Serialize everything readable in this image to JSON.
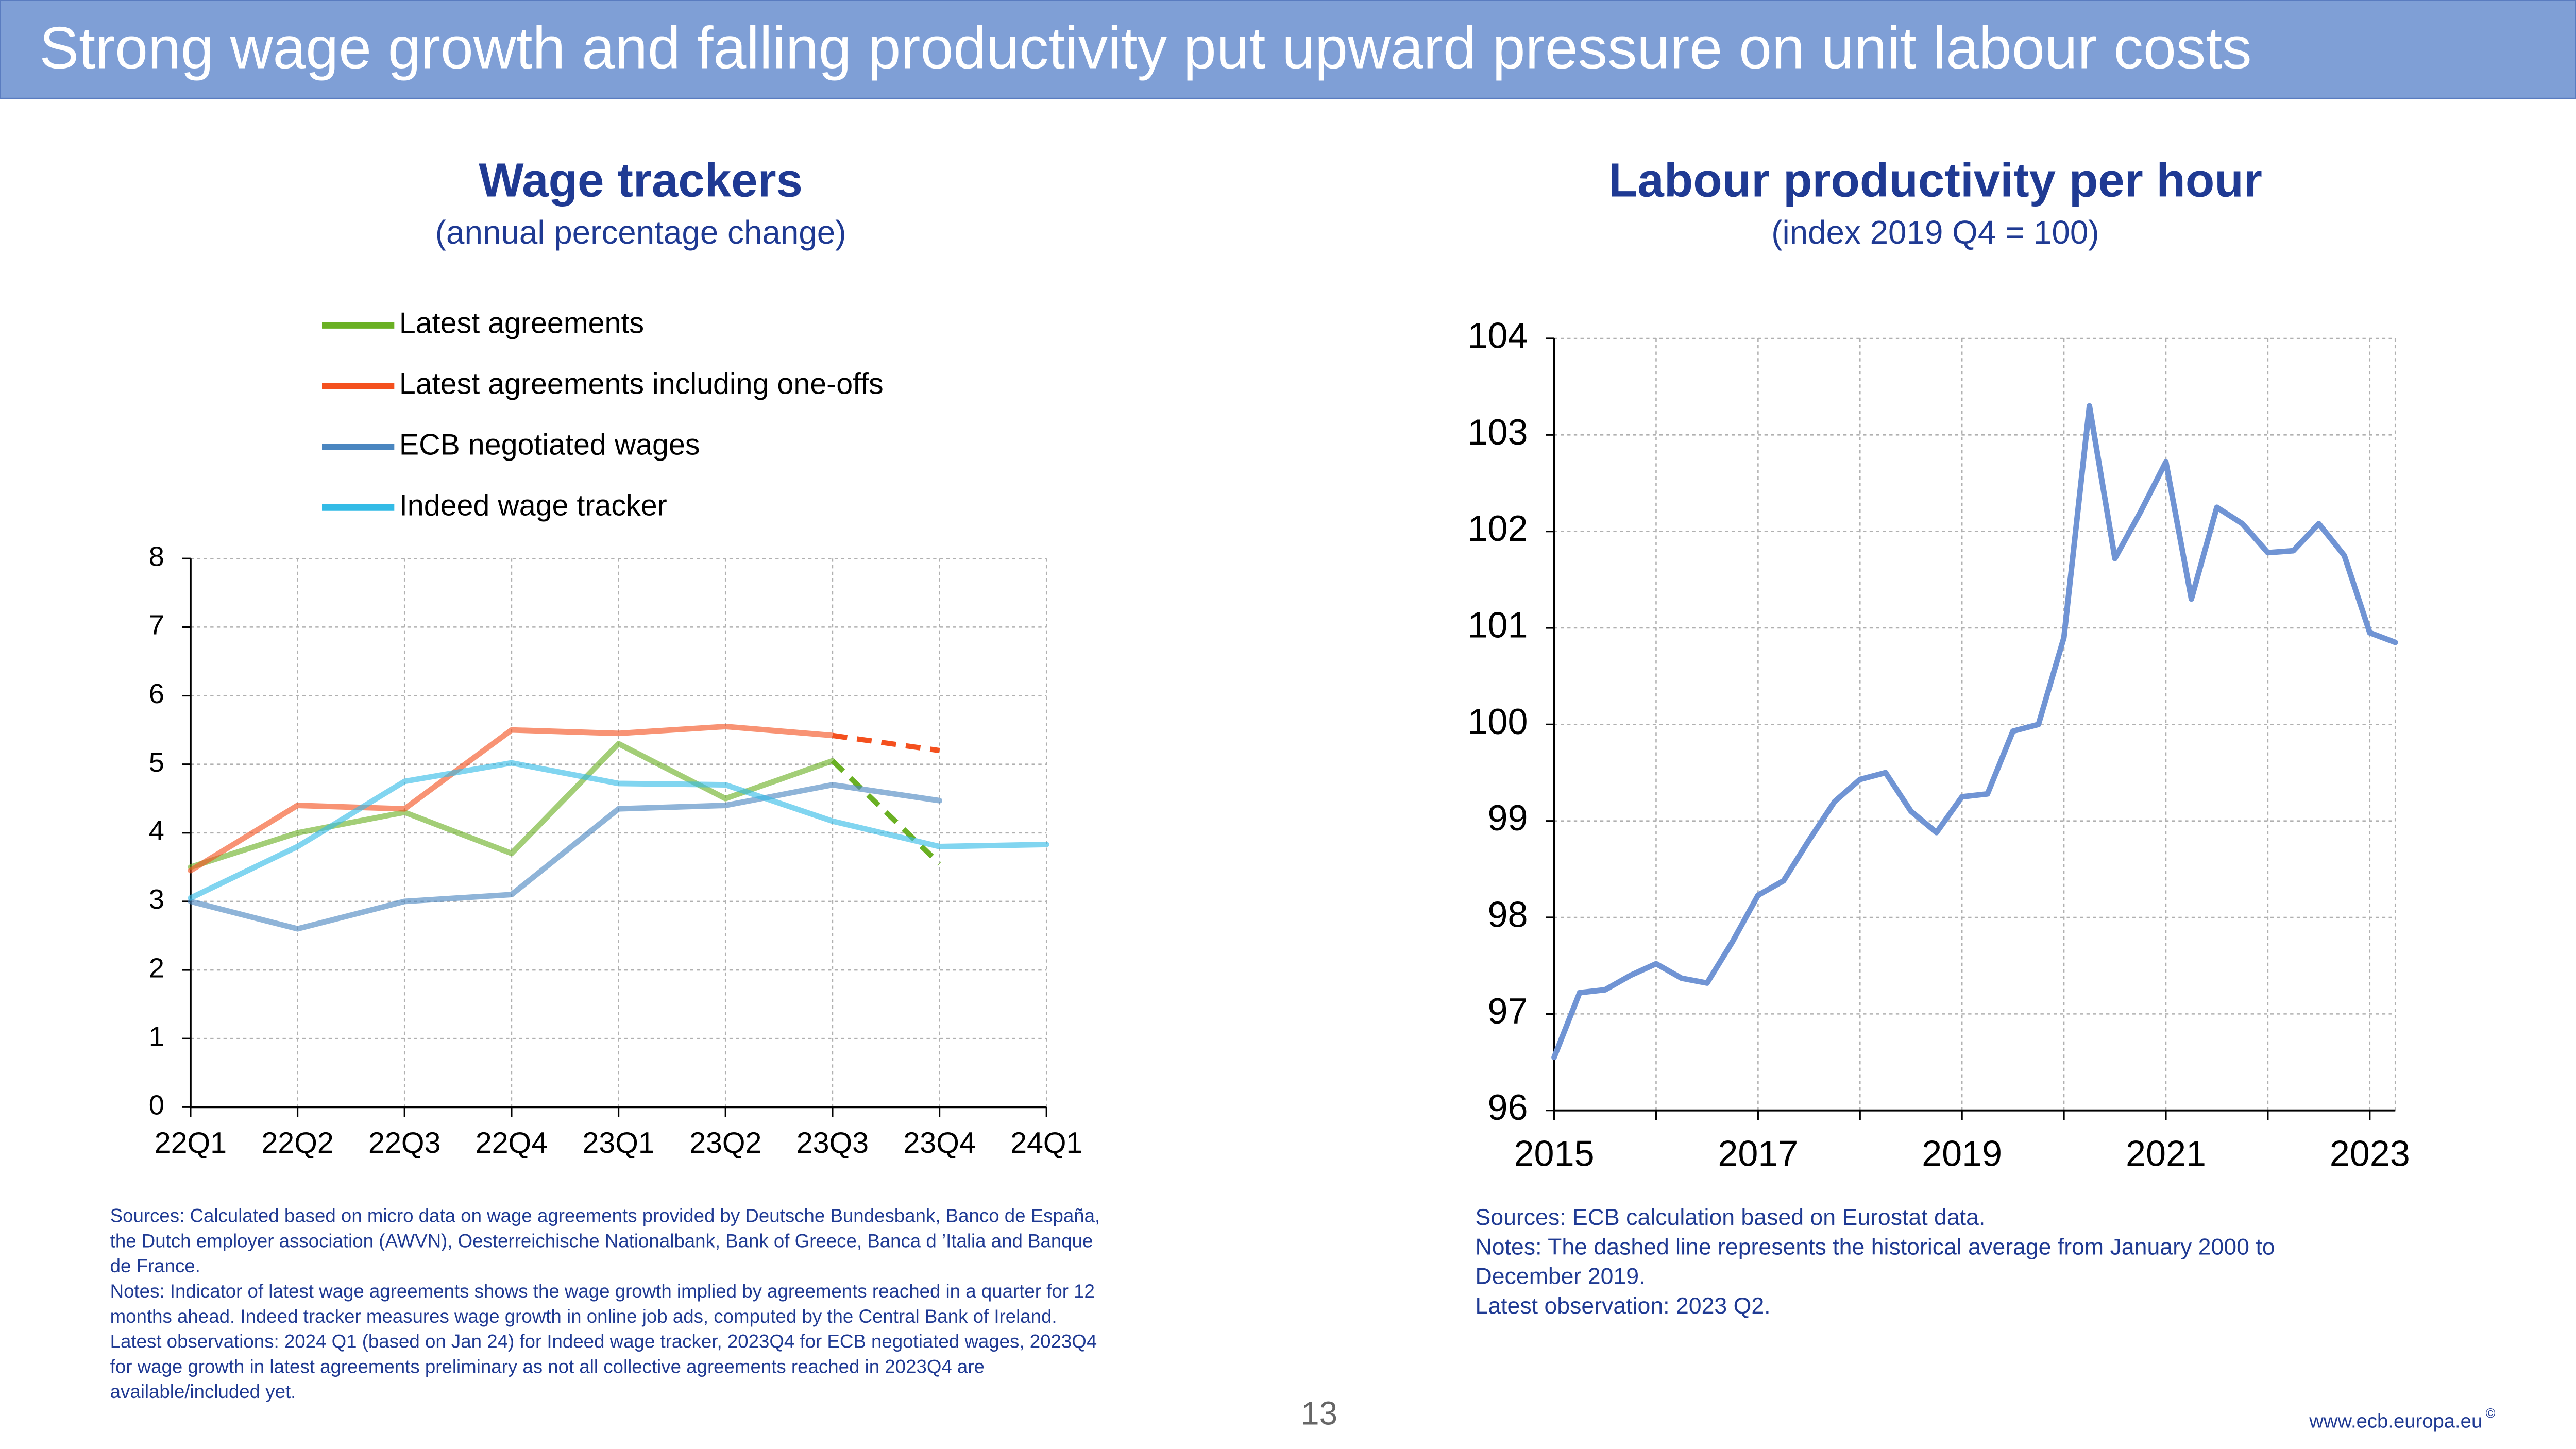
{
  "header": {
    "title": "Strong wage growth and falling productivity put upward pressure on unit labour costs"
  },
  "chart_data": [
    {
      "type": "line",
      "title": "Wage trackers",
      "subtitle": "(annual percentage change)",
      "categories": [
        "22Q1",
        "22Q2",
        "22Q3",
        "22Q4",
        "23Q1",
        "23Q2",
        "23Q3",
        "23Q4",
        "24Q1"
      ],
      "ylim": [
        0,
        8
      ],
      "yticks": [
        0,
        1,
        2,
        3,
        4,
        5,
        6,
        7,
        8
      ],
      "grid": true,
      "series": [
        {
          "name": "Latest agreements",
          "color": "#6ab023",
          "values": [
            3.5,
            4.0,
            4.3,
            3.7,
            5.3,
            4.5,
            5.05,
            3.55,
            null
          ],
          "dash_after": 6
        },
        {
          "name": "Latest agreements including one-offs",
          "color": "#f4501e",
          "values": [
            3.45,
            4.4,
            4.35,
            5.5,
            5.45,
            5.55,
            5.42,
            5.2,
            null
          ],
          "dash_after": 6
        },
        {
          "name": "ECB negotiated wages",
          "color": "#4a86c0",
          "values": [
            3.0,
            2.6,
            3.0,
            3.1,
            4.35,
            4.4,
            4.7,
            4.47,
            null
          ]
        },
        {
          "name": "Indeed wage tracker",
          "color": "#33bbe6",
          "values": [
            3.05,
            3.8,
            4.75,
            5.02,
            4.72,
            4.7,
            4.17,
            3.8,
            3.83
          ]
        }
      ],
      "notes": [
        "Sources: Calculated based on micro data on wage agreements provided by Deutsche Bundesbank, Banco de España,",
        "the Dutch employer association (AWVN), Oesterreichische Nationalbank, Bank of Greece, Banca d ’Italia and Banque",
        "de France.",
        "Notes: Indicator of latest wage agreements shows the wage growth implied by agreements reached in a quarter for 12",
        "months ahead. Indeed tracker measures wage growth in online job ads, computed by the Central Bank of Ireland.",
        "Latest observations: 2024 Q1 (based on Jan 24) for Indeed wage tracker, 2023Q4 for ECB negotiated wages, 2023Q4",
        "for wage growth in latest agreements preliminary as not all collective agreements reached in 2023Q4 are",
        "available/included yet."
      ]
    },
    {
      "type": "line",
      "title": "Labour productivity per hour",
      "subtitle": "(index 2019 Q4 = 100)",
      "x": [
        2015,
        2015.25,
        2015.5,
        2015.75,
        2016,
        2016.25,
        2016.5,
        2016.75,
        2017,
        2017.25,
        2017.5,
        2017.75,
        2018,
        2018.25,
        2018.5,
        2018.75,
        2019,
        2019.25,
        2019.5,
        2019.75,
        2020,
        2020.25,
        2020.5,
        2020.75,
        2021,
        2021.25,
        2021.5,
        2021.75,
        2022,
        2022.25,
        2022.5,
        2022.75,
        2023,
        2023.25
      ],
      "xlim": [
        2015,
        2023.25
      ],
      "xticks": [
        2015,
        2017,
        2019,
        2021,
        2023
      ],
      "xminor": [
        2016,
        2018,
        2020,
        2022
      ],
      "ylim": [
        96,
        104
      ],
      "yticks": [
        96,
        97,
        98,
        99,
        100,
        101,
        102,
        103,
        104
      ],
      "grid": true,
      "series": [
        {
          "color": "#7094d4",
          "values": [
            96.55,
            97.22,
            97.25,
            97.4,
            97.52,
            97.37,
            97.32,
            97.75,
            98.23,
            98.38,
            98.8,
            99.2,
            99.43,
            99.5,
            99.1,
            98.88,
            99.25,
            99.28,
            99.93,
            100.0,
            100.9,
            103.3,
            101.72,
            102.2,
            102.72,
            101.3,
            102.25,
            102.08,
            101.78,
            101.8,
            102.08,
            101.75,
            100.95,
            100.85
          ]
        }
      ],
      "notes": [
        "Sources: ECB calculation based on Eurostat data.",
        "Notes: The dashed line represents the historical average from January 2000 to",
        "December 2019.",
        "Latest observation: 2023 Q2."
      ]
    }
  ],
  "footer": {
    "page_number": "13",
    "url": "www.ecb.europa.eu",
    "url_mark": "©"
  }
}
